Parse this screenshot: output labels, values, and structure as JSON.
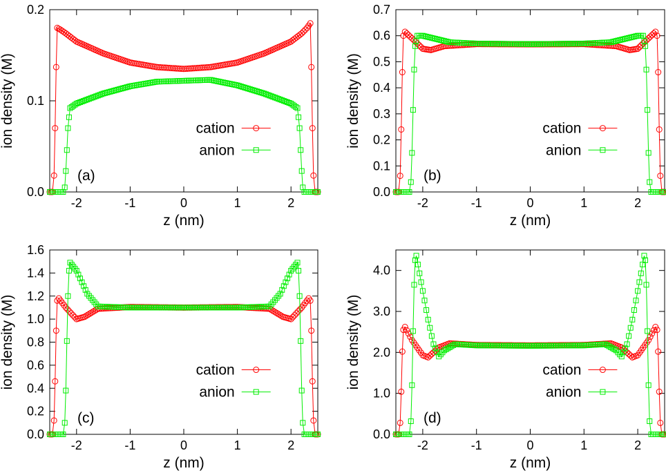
{
  "colors": {
    "cation": "#ff0000",
    "anion": "#00ee00",
    "axis": "#000000"
  },
  "legend_labels": {
    "cation": "cation",
    "anion": "anion"
  },
  "chart_data": [
    {
      "type": "line",
      "panel_label": "(a)",
      "xlabel": "z (nm)",
      "ylabel": "ion density (M)",
      "xlim": [
        -2.5,
        2.5
      ],
      "ylim": [
        0,
        0.2
      ],
      "xticks": [
        -2,
        -1,
        0,
        1,
        2
      ],
      "xtick_labels": [
        "-2",
        "-1",
        "0",
        "1",
        "2"
      ],
      "yticks": [
        0,
        0.1,
        0.2
      ],
      "ytick_labels": [
        "0.0",
        "0.1",
        "0.2"
      ],
      "legend_position": "center-right",
      "series": [
        {
          "name": "cation",
          "marker": "circle",
          "points": [
            [
              -2.5,
              0.0
            ],
            [
              -2.45,
              0.0
            ],
            [
              -2.42,
              0.018
            ],
            [
              -2.4,
              0.07
            ],
            [
              -2.38,
              0.137
            ],
            [
              -2.36,
              0.18
            ],
            [
              -2.3,
              0.178
            ],
            [
              -2.2,
              0.174
            ],
            [
              -2.0,
              0.165
            ],
            [
              -1.5,
              0.152
            ],
            [
              -1.0,
              0.142
            ],
            [
              -0.5,
              0.137
            ],
            [
              0.0,
              0.135
            ],
            [
              0.5,
              0.137
            ],
            [
              1.0,
              0.142
            ],
            [
              1.5,
              0.152
            ],
            [
              2.0,
              0.165
            ],
            [
              2.2,
              0.174
            ],
            [
              2.3,
              0.18
            ],
            [
              2.36,
              0.185
            ],
            [
              2.38,
              0.137
            ],
            [
              2.4,
              0.07
            ],
            [
              2.42,
              0.018
            ],
            [
              2.45,
              0.0
            ],
            [
              2.5,
              0.0
            ]
          ]
        },
        {
          "name": "anion",
          "marker": "square",
          "points": [
            [
              -2.5,
              0.0
            ],
            [
              -2.25,
              0.0
            ],
            [
              -2.22,
              0.005
            ],
            [
              -2.2,
              0.023
            ],
            [
              -2.18,
              0.046
            ],
            [
              -2.16,
              0.07
            ],
            [
              -2.14,
              0.082
            ],
            [
              -2.12,
              0.092
            ],
            [
              -2.0,
              0.097
            ],
            [
              -1.5,
              0.108
            ],
            [
              -1.0,
              0.116
            ],
            [
              -0.5,
              0.121
            ],
            [
              0.0,
              0.122
            ],
            [
              0.5,
              0.123
            ],
            [
              1.0,
              0.117
            ],
            [
              1.5,
              0.108
            ],
            [
              2.0,
              0.097
            ],
            [
              2.12,
              0.092
            ],
            [
              2.14,
              0.082
            ],
            [
              2.16,
              0.07
            ],
            [
              2.18,
              0.046
            ],
            [
              2.2,
              0.023
            ],
            [
              2.22,
              0.005
            ],
            [
              2.25,
              0.0
            ],
            [
              2.5,
              0.0
            ]
          ]
        }
      ]
    },
    {
      "type": "line",
      "panel_label": "(b)",
      "xlabel": "z (nm)",
      "ylabel": "ion density (M)",
      "xlim": [
        -2.5,
        2.5
      ],
      "ylim": [
        0,
        0.7
      ],
      "xticks": [
        -2,
        -1,
        0,
        1,
        2
      ],
      "xtick_labels": [
        "-2",
        "-1",
        "0",
        "1",
        "2"
      ],
      "yticks": [
        0,
        0.1,
        0.2,
        0.3,
        0.4,
        0.5,
        0.6,
        0.7
      ],
      "ytick_labels": [
        "0.0",
        "0.1",
        "0.2",
        "0.3",
        "0.4",
        "0.5",
        "0.6",
        "0.7"
      ],
      "legend_position": "center-right",
      "series": [
        {
          "name": "cation",
          "marker": "circle",
          "points": [
            [
              -2.5,
              0.0
            ],
            [
              -2.45,
              0.0
            ],
            [
              -2.42,
              0.062
            ],
            [
              -2.4,
              0.24
            ],
            [
              -2.38,
              0.46
            ],
            [
              -2.36,
              0.6
            ],
            [
              -2.33,
              0.615
            ],
            [
              -2.2,
              0.59
            ],
            [
              -2.0,
              0.55
            ],
            [
              -1.85,
              0.545
            ],
            [
              -1.6,
              0.56
            ],
            [
              -1.0,
              0.568
            ],
            [
              0.0,
              0.567
            ],
            [
              1.0,
              0.568
            ],
            [
              1.6,
              0.56
            ],
            [
              1.85,
              0.545
            ],
            [
              2.0,
              0.55
            ],
            [
              2.2,
              0.59
            ],
            [
              2.33,
              0.615
            ],
            [
              2.36,
              0.6
            ],
            [
              2.38,
              0.46
            ],
            [
              2.4,
              0.24
            ],
            [
              2.42,
              0.062
            ],
            [
              2.45,
              0.0
            ],
            [
              2.5,
              0.0
            ]
          ]
        },
        {
          "name": "anion",
          "marker": "square",
          "points": [
            [
              -2.5,
              0.0
            ],
            [
              -2.25,
              0.0
            ],
            [
              -2.22,
              0.038
            ],
            [
              -2.2,
              0.15
            ],
            [
              -2.18,
              0.315
            ],
            [
              -2.16,
              0.47
            ],
            [
              -2.14,
              0.56
            ],
            [
              -2.1,
              0.6
            ],
            [
              -2.0,
              0.6
            ],
            [
              -1.5,
              0.575
            ],
            [
              -1.0,
              0.57
            ],
            [
              0.0,
              0.568
            ],
            [
              1.0,
              0.57
            ],
            [
              1.5,
              0.575
            ],
            [
              2.0,
              0.6
            ],
            [
              2.1,
              0.6
            ],
            [
              2.14,
              0.56
            ],
            [
              2.16,
              0.47
            ],
            [
              2.18,
              0.315
            ],
            [
              2.2,
              0.15
            ],
            [
              2.22,
              0.038
            ],
            [
              2.25,
              0.0
            ],
            [
              2.5,
              0.0
            ]
          ]
        }
      ]
    },
    {
      "type": "line",
      "panel_label": "(c)",
      "xlabel": "z (nm)",
      "ylabel": "ion density (M)",
      "xlim": [
        -2.5,
        2.5
      ],
      "ylim": [
        0,
        1.6
      ],
      "xticks": [
        -2,
        -1,
        0,
        1,
        2
      ],
      "xtick_labels": [
        "-2",
        "-1",
        "0",
        "1",
        "2"
      ],
      "yticks": [
        0,
        0.2,
        0.4,
        0.6,
        0.8,
        1.0,
        1.2,
        1.4,
        1.6
      ],
      "ytick_labels": [
        "0.0",
        "0.2",
        "0.4",
        "0.6",
        "0.8",
        "1.0",
        "1.2",
        "1.4",
        "1.6"
      ],
      "legend_position": "center-right",
      "series": [
        {
          "name": "cation",
          "marker": "circle",
          "points": [
            [
              -2.5,
              0.0
            ],
            [
              -2.45,
              0.0
            ],
            [
              -2.42,
              0.12
            ],
            [
              -2.4,
              0.46
            ],
            [
              -2.38,
              0.9
            ],
            [
              -2.36,
              1.16
            ],
            [
              -2.33,
              1.18
            ],
            [
              -2.2,
              1.1
            ],
            [
              -2.0,
              1.0
            ],
            [
              -1.85,
              1.02
            ],
            [
              -1.6,
              1.09
            ],
            [
              -1.0,
              1.105
            ],
            [
              0.0,
              1.1
            ],
            [
              1.0,
              1.105
            ],
            [
              1.6,
              1.09
            ],
            [
              1.85,
              1.02
            ],
            [
              2.0,
              1.0
            ],
            [
              2.2,
              1.1
            ],
            [
              2.33,
              1.18
            ],
            [
              2.36,
              1.16
            ],
            [
              2.38,
              0.9
            ],
            [
              2.4,
              0.46
            ],
            [
              2.42,
              0.12
            ],
            [
              2.45,
              0.0
            ],
            [
              2.5,
              0.0
            ]
          ]
        },
        {
          "name": "anion",
          "marker": "square",
          "points": [
            [
              -2.5,
              0.0
            ],
            [
              -2.25,
              0.0
            ],
            [
              -2.22,
              0.1
            ],
            [
              -2.2,
              0.38
            ],
            [
              -2.18,
              0.81
            ],
            [
              -2.16,
              1.2
            ],
            [
              -2.14,
              1.42
            ],
            [
              -2.12,
              1.49
            ],
            [
              -2.0,
              1.42
            ],
            [
              -1.8,
              1.22
            ],
            [
              -1.6,
              1.11
            ],
            [
              -1.0,
              1.1
            ],
            [
              0.0,
              1.1
            ],
            [
              1.0,
              1.1
            ],
            [
              1.6,
              1.11
            ],
            [
              1.8,
              1.22
            ],
            [
              2.0,
              1.42
            ],
            [
              2.12,
              1.49
            ],
            [
              2.14,
              1.42
            ],
            [
              2.16,
              1.2
            ],
            [
              2.18,
              0.81
            ],
            [
              2.2,
              0.38
            ],
            [
              2.22,
              0.1
            ],
            [
              2.25,
              0.0
            ],
            [
              2.5,
              0.0
            ]
          ]
        }
      ]
    },
    {
      "type": "line",
      "panel_label": "(d)",
      "xlabel": "z (nm)",
      "ylabel": "ion density (M)",
      "xlim": [
        -2.5,
        2.5
      ],
      "ylim": [
        0,
        4.5
      ],
      "xticks": [
        -2,
        -1,
        0,
        1,
        2
      ],
      "xtick_labels": [
        "-2",
        "-1",
        "0",
        "1",
        "2"
      ],
      "yticks": [
        0,
        1.0,
        2.0,
        3.0,
        4.0
      ],
      "ytick_labels": [
        "0.0",
        "1.0",
        "2.0",
        "3.0",
        "4.0"
      ],
      "legend_position": "center-right",
      "series": [
        {
          "name": "cation",
          "marker": "circle",
          "points": [
            [
              -2.5,
              0.0
            ],
            [
              -2.45,
              0.0
            ],
            [
              -2.42,
              0.28
            ],
            [
              -2.4,
              1.04
            ],
            [
              -2.38,
              2.02
            ],
            [
              -2.36,
              2.55
            ],
            [
              -2.33,
              2.62
            ],
            [
              -2.2,
              2.3
            ],
            [
              -2.0,
              1.93
            ],
            [
              -1.9,
              1.88
            ],
            [
              -1.7,
              2.12
            ],
            [
              -1.5,
              2.22
            ],
            [
              -1.0,
              2.18
            ],
            [
              0.0,
              2.17
            ],
            [
              1.0,
              2.18
            ],
            [
              1.5,
              2.22
            ],
            [
              1.7,
              2.12
            ],
            [
              1.9,
              1.88
            ],
            [
              2.0,
              1.93
            ],
            [
              2.2,
              2.3
            ],
            [
              2.33,
              2.62
            ],
            [
              2.36,
              2.55
            ],
            [
              2.38,
              2.02
            ],
            [
              2.4,
              1.04
            ],
            [
              2.42,
              0.28
            ],
            [
              2.45,
              0.0
            ],
            [
              2.5,
              0.0
            ]
          ]
        },
        {
          "name": "anion",
          "marker": "square",
          "points": [
            [
              -2.5,
              0.0
            ],
            [
              -2.25,
              0.0
            ],
            [
              -2.22,
              0.32
            ],
            [
              -2.2,
              1.2
            ],
            [
              -2.18,
              2.52
            ],
            [
              -2.16,
              3.65
            ],
            [
              -2.14,
              4.25
            ],
            [
              -2.12,
              4.36
            ],
            [
              -2.0,
              3.5
            ],
            [
              -1.9,
              2.8
            ],
            [
              -1.8,
              2.2
            ],
            [
              -1.7,
              1.9
            ],
            [
              -1.6,
              2.05
            ],
            [
              -1.4,
              2.2
            ],
            [
              -1.0,
              2.17
            ],
            [
              0.0,
              2.16
            ],
            [
              1.0,
              2.17
            ],
            [
              1.4,
              2.2
            ],
            [
              1.6,
              2.05
            ],
            [
              1.7,
              1.9
            ],
            [
              1.8,
              2.2
            ],
            [
              1.9,
              2.8
            ],
            [
              2.0,
              3.5
            ],
            [
              2.12,
              4.36
            ],
            [
              2.14,
              4.25
            ],
            [
              2.16,
              3.65
            ],
            [
              2.18,
              2.52
            ],
            [
              2.2,
              1.2
            ],
            [
              2.22,
              0.32
            ],
            [
              2.25,
              0.0
            ],
            [
              2.5,
              0.0
            ]
          ]
        }
      ]
    }
  ]
}
